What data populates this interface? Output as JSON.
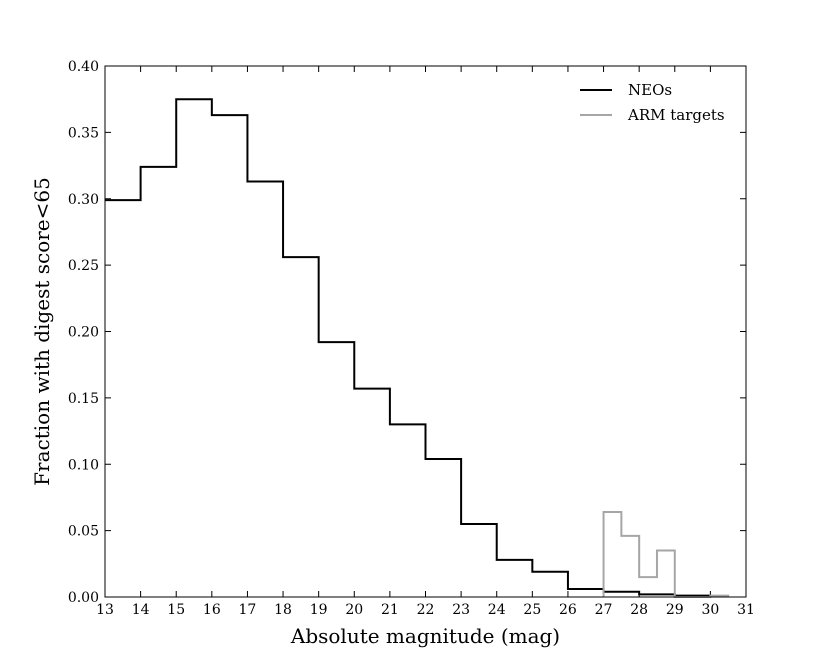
{
  "chart_data": {
    "type": "step-histogram",
    "xlabel": "Absolute magnitude (mag)",
    "ylabel": "Fraction with digest score<65",
    "xlim": [
      13,
      31
    ],
    "ylim": [
      0.0,
      0.4
    ],
    "xticks": [
      "13",
      "14",
      "15",
      "16",
      "17",
      "18",
      "19",
      "20",
      "21",
      "22",
      "23",
      "24",
      "25",
      "26",
      "27",
      "28",
      "29",
      "30",
      "31"
    ],
    "yticks": [
      "0.00",
      "0.05",
      "0.10",
      "0.15",
      "0.20",
      "0.25",
      "0.30",
      "0.35",
      "0.40"
    ],
    "legend_position": "top-right",
    "series": [
      {
        "name": "NEOs",
        "color": "#000000",
        "bin_edges": [
          13,
          14,
          15,
          16,
          17,
          18,
          19,
          20,
          21,
          22,
          23,
          24,
          25,
          26,
          27,
          28,
          29,
          30
        ],
        "values": [
          0.299,
          0.324,
          0.375,
          0.363,
          0.313,
          0.256,
          0.192,
          0.157,
          0.13,
          0.104,
          0.055,
          0.028,
          0.019,
          0.006,
          0.004,
          0.002,
          0.001
        ]
      },
      {
        "name": "ARM targets",
        "color": "#a6a6a6",
        "bin_edges": [
          27.0,
          27.5,
          28.0,
          28.5,
          29.0,
          29.5,
          30.0,
          30.5
        ],
        "values": [
          0.064,
          0.046,
          0.015,
          0.035,
          0.0,
          0.0,
          0.001
        ]
      }
    ]
  }
}
